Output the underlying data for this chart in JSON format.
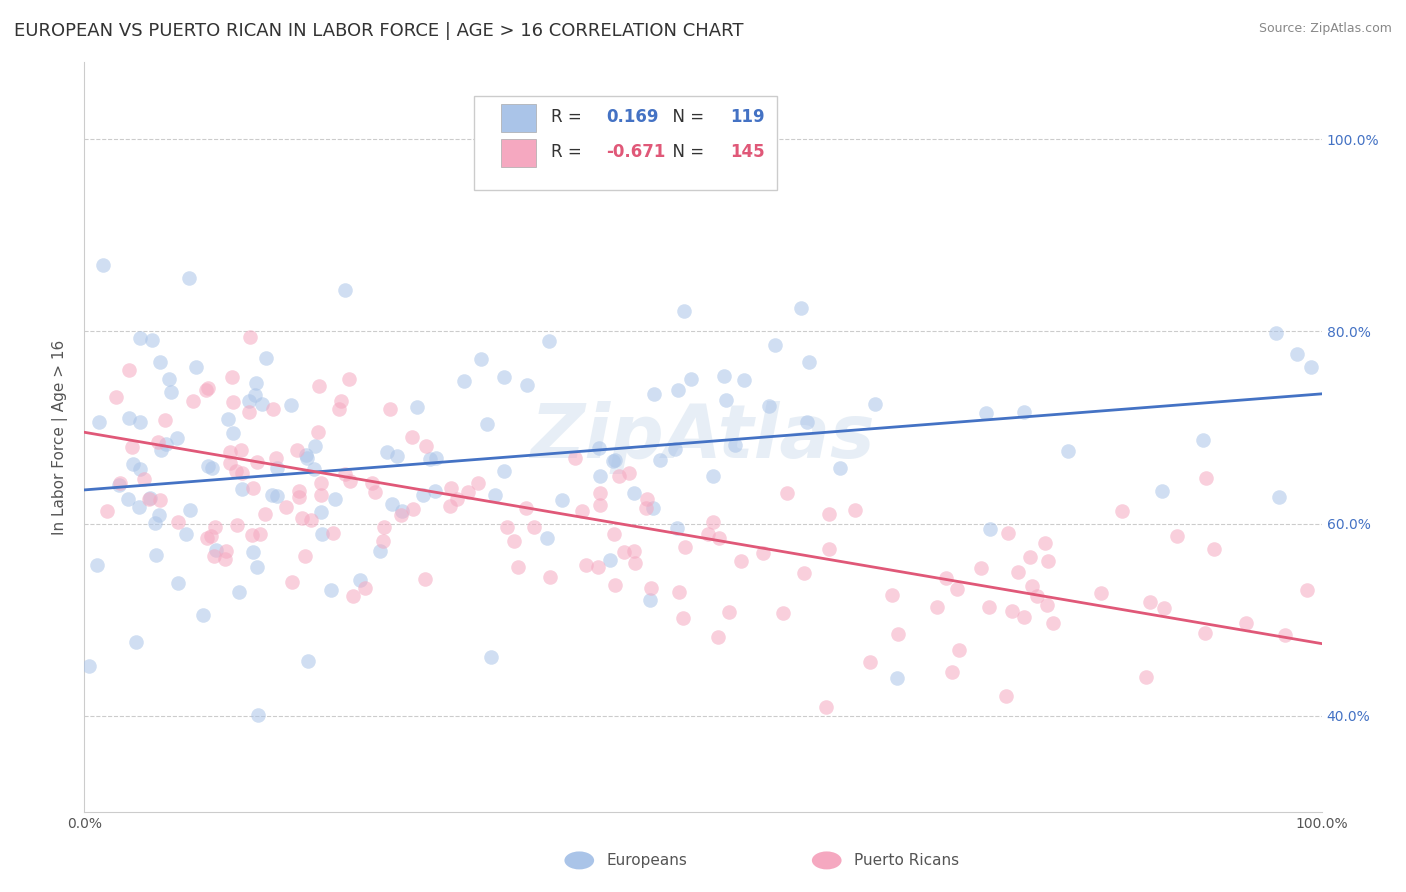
{
  "title": "EUROPEAN VS PUERTO RICAN IN LABOR FORCE | AGE > 16 CORRELATION CHART",
  "source": "Source: ZipAtlas.com",
  "ylabel": "In Labor Force | Age > 16",
  "xlim": [
    0.0,
    1.0
  ],
  "ylim": [
    0.3,
    1.08
  ],
  "yticks": [
    0.4,
    0.6,
    0.8,
    1.0
  ],
  "ytick_labels": [
    "40.0%",
    "60.0%",
    "80.0%",
    "100.0%"
  ],
  "xtick_labels": [
    "0.0%",
    "100.0%"
  ],
  "european_color": "#aac4e8",
  "puerto_rican_color": "#f5a8c0",
  "european_line_color": "#4472c4",
  "puerto_rican_line_color": "#e05878",
  "european_R": 0.169,
  "european_N": 119,
  "puerto_rican_R": -0.671,
  "puerto_rican_N": 145,
  "legend_label_european": "Europeans",
  "legend_label_puerto_rican": "Puerto Ricans",
  "background_color": "#ffffff",
  "grid_color": "#cccccc",
  "title_fontsize": 13,
  "axis_fontsize": 11,
  "tick_fontsize": 10,
  "dot_size": 110,
  "dot_alpha": 0.55,
  "eu_line_start_y": 0.635,
  "eu_line_end_y": 0.735,
  "pr_line_start_y": 0.695,
  "pr_line_end_y": 0.475
}
